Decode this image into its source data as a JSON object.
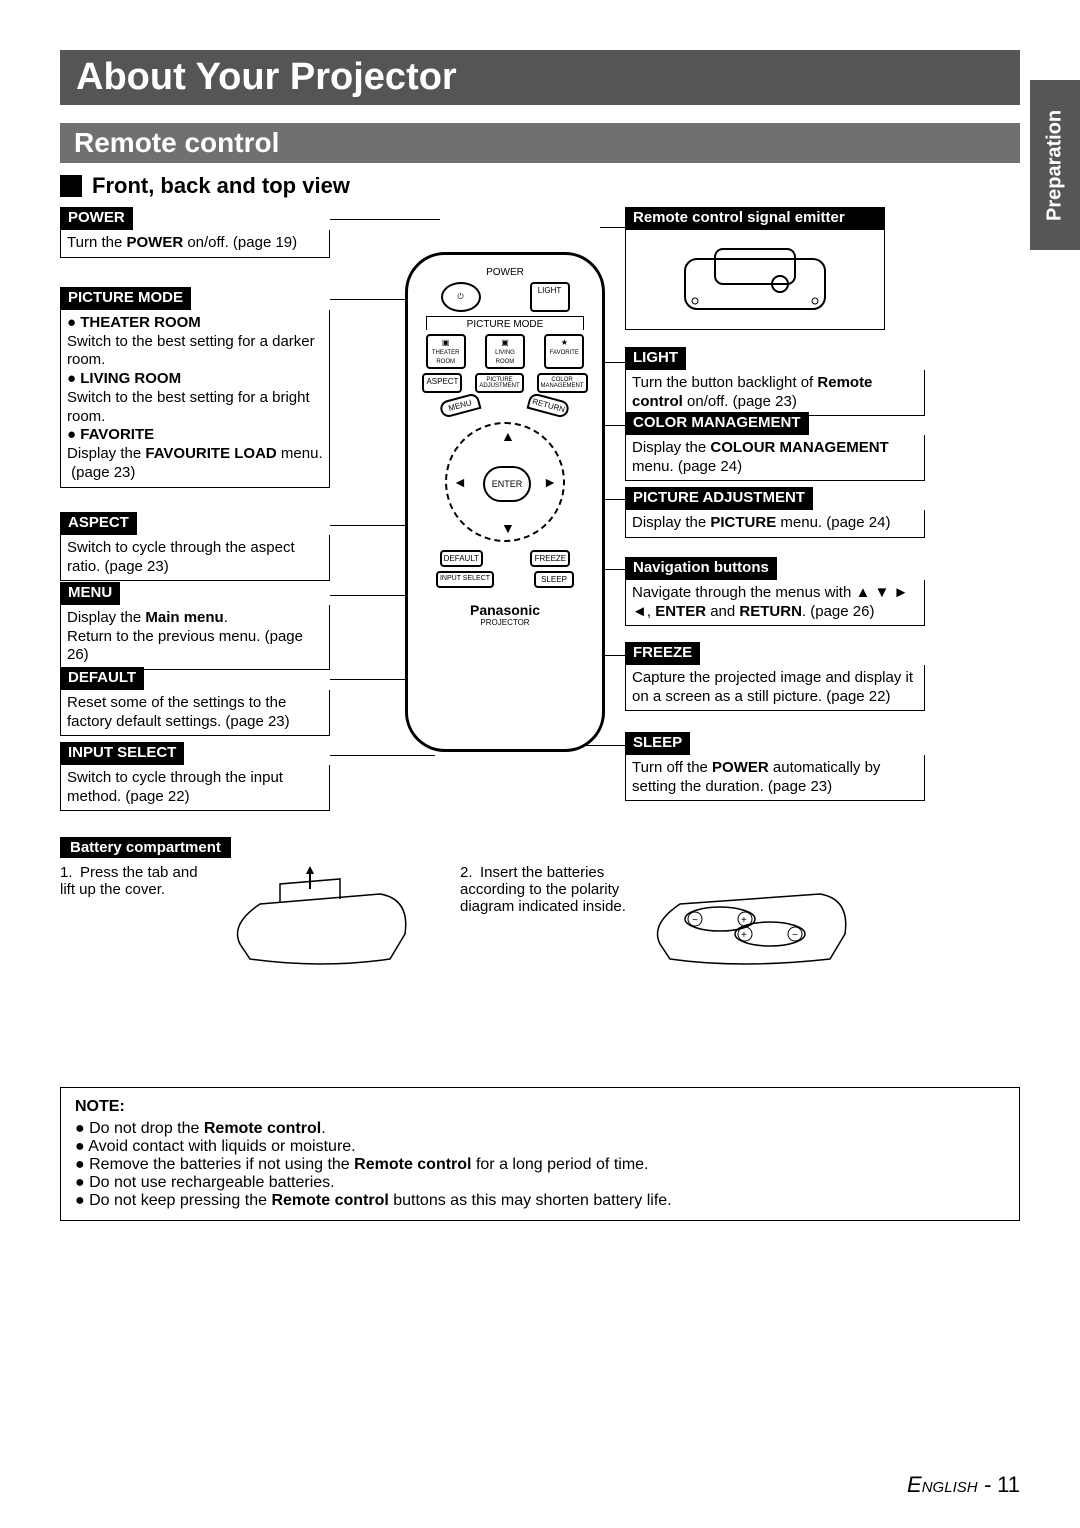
{
  "sideTab": "Preparation",
  "title": "About Your Projector",
  "subtitle": "Remote control",
  "sectionHead": "Front, back and top view",
  "left": {
    "power": {
      "h": "POWER",
      "b": "Turn the <b>POWER</b> on/off. (page 19)"
    },
    "pictureMode": {
      "h": "PICTURE MODE",
      "items": [
        "<b>THEATER ROOM</b><br>Switch to the best setting for a darker room.",
        "<b>LIVING ROOM</b><br>Switch to the best setting for a bright room.",
        "<b>FAVORITE</b><br>Display the <b>FAVOURITE LOAD</b> menu.<br>&nbsp;(page 23)"
      ]
    },
    "aspect": {
      "h": "ASPECT",
      "b": "Switch to cycle through the aspect ratio. (page 23)"
    },
    "menu": {
      "h": "MENU",
      "b": "Display the <b>Main menu</b>.<br>Return to the previous menu. (page 26)"
    },
    "default": {
      "h": "DEFAULT",
      "b": "Reset some of the settings to the factory default settings. (page 23)"
    },
    "inputSelect": {
      "h": "INPUT SELECT",
      "b": "Switch to cycle through the input method. (page 22)"
    }
  },
  "right": {
    "emitter": {
      "h": "Remote control signal emitter"
    },
    "light": {
      "h": "LIGHT",
      "b": "Turn the button backlight of <b>Remote control</b> on/off. (page 23)"
    },
    "colorMgmt": {
      "h": "COLOR MANAGEMENT",
      "b": "Display the <b>COLOUR MANAGEMENT</b> menu. (page 24)"
    },
    "picAdj": {
      "h": "PICTURE ADJUSTMENT",
      "b": "Display the <b>PICTURE</b> menu. (page 24)"
    },
    "nav": {
      "h": "Navigation buttons",
      "b": "Navigate through the menus with ▲ ▼ ► ◄, <b>ENTER</b> and <b>RETURN</b>. (page 26)"
    },
    "freeze": {
      "h": "FREEZE",
      "b": "Capture the projected image and display it on a screen as a still picture. (page 22)"
    },
    "sleep": {
      "h": "SLEEP",
      "b": "Turn off the <b>POWER</b> automatically by setting the duration. (page 23)"
    }
  },
  "battery": {
    "h": "Battery compartment",
    "step1": "1. Press the tab and lift up the cover.",
    "step2": "2. Insert the batteries according to the polarity diagram indicated inside."
  },
  "note": {
    "title": "NOTE:",
    "items": [
      "Do not drop the <b>Remote control</b>.",
      "Avoid contact with liquids or moisture.",
      "Remove the batteries if not using the <b>Remote control</b> for a long period of time.",
      "Do not use rechargeable batteries.",
      "Do not keep pressing the <b>Remote control</b> buttons as this may shorten battery life."
    ]
  },
  "remote": {
    "power": "POWER",
    "light": "LIGHT",
    "picMode": "PICTURE MODE",
    "theater": "THEATER ROOM",
    "living": "LIVING ROOM",
    "favorite": "FAVORITE",
    "aspect": "ASPECT",
    "picAdj": "PICTURE ADJUSTMENT",
    "color": "COLOR MANAGEMENT",
    "menu": "MENU",
    "return": "RETURN",
    "enter": "ENTER",
    "default": "DEFAULT",
    "freeze": "FREEZE",
    "inputSel": "INPUT SELECT",
    "sleep": "SLEEP",
    "brand": "Panasonic",
    "sub": "PROJECTOR"
  },
  "footer": {
    "lang": "English",
    "page": "11"
  }
}
